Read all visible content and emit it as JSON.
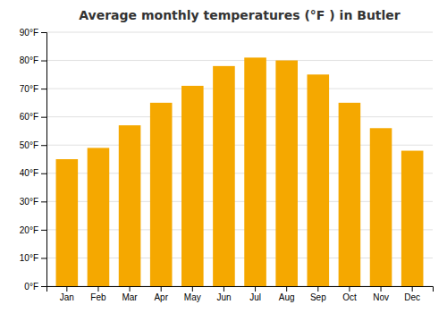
{
  "chart_data": {
    "type": "bar",
    "title": "Average monthly temperatures (°F ) in Butler",
    "categories": [
      "Jan",
      "Feb",
      "Mar",
      "Apr",
      "May",
      "Jun",
      "Jul",
      "Aug",
      "Sep",
      "Oct",
      "Nov",
      "Dec"
    ],
    "values": [
      45,
      49,
      57,
      65,
      71,
      78,
      81,
      80,
      75,
      65,
      56,
      48
    ],
    "color": "#F5A800",
    "ylim": [
      0,
      90
    ],
    "yticks": [
      {
        "value": 0,
        "label": "0°F"
      },
      {
        "value": 10,
        "label": "10°F"
      },
      {
        "value": 20,
        "label": "20°F"
      },
      {
        "value": 30,
        "label": "30°F"
      },
      {
        "value": 40,
        "label": "40°F"
      },
      {
        "value": 50,
        "label": "50°F"
      },
      {
        "value": 60,
        "label": "60°F"
      },
      {
        "value": 70,
        "label": "70°F"
      },
      {
        "value": 80,
        "label": "80°F"
      },
      {
        "value": 90,
        "label": "90°F"
      }
    ],
    "grid": true
  }
}
